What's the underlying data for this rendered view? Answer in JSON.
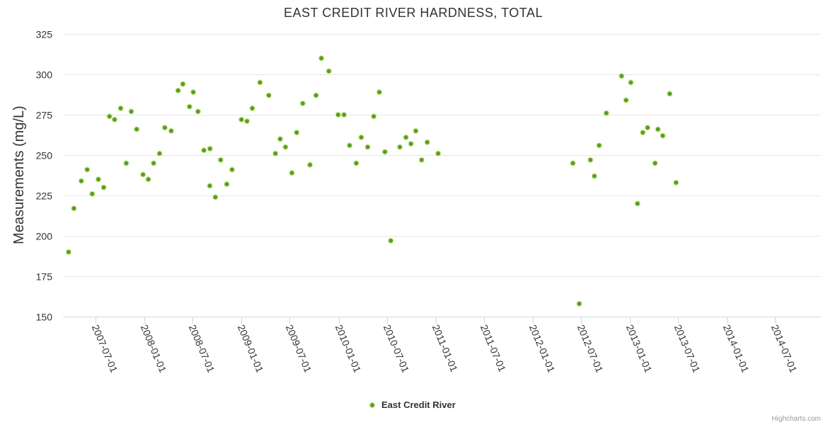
{
  "chart_data": {
    "type": "scatter",
    "title": "EAST CREDIT RIVER HARDNESS, TOTAL",
    "xlabel": "",
    "ylabel": "Measurements (mg/L)",
    "ylim": [
      150,
      325
    ],
    "yticks": [
      150,
      175,
      200,
      225,
      250,
      275,
      300,
      325
    ],
    "xlim": [
      "2007-03-01",
      "2014-12-20"
    ],
    "xticks": [
      "2007-07-01",
      "2008-01-01",
      "2008-07-01",
      "2009-01-01",
      "2009-07-01",
      "2010-01-01",
      "2010-07-01",
      "2011-01-01",
      "2011-07-01",
      "2012-01-01",
      "2012-07-01",
      "2013-01-01",
      "2013-07-01",
      "2014-01-01",
      "2014-07-01"
    ],
    "grid": true,
    "legend_position": "bottom-center",
    "series": [
      {
        "name": "East Credit River",
        "color": "#5a9e1a",
        "points": [
          [
            "2007-03-22",
            190
          ],
          [
            "2007-04-11",
            217
          ],
          [
            "2007-05-09",
            234
          ],
          [
            "2007-05-31",
            241
          ],
          [
            "2007-06-19",
            226
          ],
          [
            "2007-07-12",
            235
          ],
          [
            "2007-08-01",
            230
          ],
          [
            "2007-08-23",
            274
          ],
          [
            "2007-09-11",
            272
          ],
          [
            "2007-10-04",
            279
          ],
          [
            "2007-10-25",
            245
          ],
          [
            "2007-11-13",
            277
          ],
          [
            "2007-12-03",
            266
          ],
          [
            "2007-12-27",
            238
          ],
          [
            "2008-01-16",
            235
          ],
          [
            "2008-02-05",
            245
          ],
          [
            "2008-02-27",
            251
          ],
          [
            "2008-03-18",
            267
          ],
          [
            "2008-04-11",
            265
          ],
          [
            "2008-05-07",
            290
          ],
          [
            "2008-05-25",
            294
          ],
          [
            "2008-06-19",
            280
          ],
          [
            "2008-07-03",
            289
          ],
          [
            "2008-07-21",
            277
          ],
          [
            "2008-08-12",
            253
          ],
          [
            "2008-09-03",
            231
          ],
          [
            "2008-09-04",
            254
          ],
          [
            "2008-09-24",
            224
          ],
          [
            "2008-10-14",
            247
          ],
          [
            "2008-11-06",
            232
          ],
          [
            "2008-11-26",
            241
          ],
          [
            "2008-12-31",
            272
          ],
          [
            "2009-01-21",
            271
          ],
          [
            "2009-02-10",
            279
          ],
          [
            "2009-03-11",
            295
          ],
          [
            "2009-04-13",
            287
          ],
          [
            "2009-05-08",
            251
          ],
          [
            "2009-05-26",
            260
          ],
          [
            "2009-06-15",
            255
          ],
          [
            "2009-07-09",
            239
          ],
          [
            "2009-07-27",
            264
          ],
          [
            "2009-08-19",
            282
          ],
          [
            "2009-09-15",
            244
          ],
          [
            "2009-10-08",
            287
          ],
          [
            "2009-10-28",
            310
          ],
          [
            "2009-11-25",
            302
          ],
          [
            "2009-12-30",
            275
          ],
          [
            "2010-01-21",
            275
          ],
          [
            "2010-02-11",
            256
          ],
          [
            "2010-03-08",
            245
          ],
          [
            "2010-03-27",
            261
          ],
          [
            "2010-04-20",
            255
          ],
          [
            "2010-05-13",
            274
          ],
          [
            "2010-06-03",
            289
          ],
          [
            "2010-06-24",
            252
          ],
          [
            "2010-07-16",
            197
          ],
          [
            "2010-08-19",
            255
          ],
          [
            "2010-09-11",
            261
          ],
          [
            "2010-09-30",
            257
          ],
          [
            "2010-10-18",
            265
          ],
          [
            "2010-11-09",
            247
          ],
          [
            "2010-11-30",
            258
          ],
          [
            "2011-01-10",
            251
          ],
          [
            "2012-05-31",
            245
          ],
          [
            "2012-06-24",
            158
          ],
          [
            "2012-08-05",
            247
          ],
          [
            "2012-08-20",
            237
          ],
          [
            "2012-09-07",
            256
          ],
          [
            "2012-10-04",
            276
          ],
          [
            "2012-11-30",
            299
          ],
          [
            "2012-12-17",
            284
          ],
          [
            "2013-01-04",
            295
          ],
          [
            "2013-01-29",
            220
          ],
          [
            "2013-02-18",
            264
          ],
          [
            "2013-03-08",
            267
          ],
          [
            "2013-04-05",
            245
          ],
          [
            "2013-04-16",
            266
          ],
          [
            "2013-05-04",
            262
          ],
          [
            "2013-05-30",
            288
          ],
          [
            "2013-06-23",
            233
          ]
        ]
      }
    ]
  },
  "credits": "Highcharts.com"
}
